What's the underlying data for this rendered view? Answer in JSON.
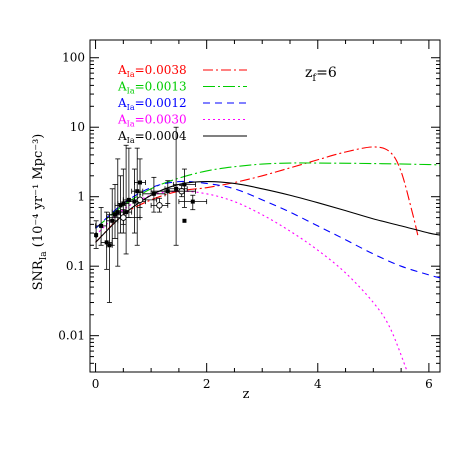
{
  "chart_data": {
    "type": "line",
    "title": "",
    "xlabel": "z",
    "ylabel": {
      "main": "SNR",
      "sub": "Ia",
      "units": " (10⁻⁴ yr⁻¹ Mpc⁻³)"
    },
    "xlim": [
      -0.1,
      6.2
    ],
    "ylim": [
      0.003,
      180
    ],
    "yscale": "log",
    "grid": false,
    "legend_position": "top-right",
    "xticks": [
      0,
      2,
      4,
      6
    ],
    "xtick_labels": [
      "0",
      "2",
      "4",
      "6"
    ],
    "yticks": [
      0.01,
      0.1,
      1,
      10,
      100
    ],
    "ytick_labels": [
      "0.01",
      "0.1",
      "1",
      "10",
      "100"
    ],
    "annotation": {
      "main": "z",
      "sub": "f",
      "tail": "=6"
    },
    "series": [
      {
        "name": {
          "main": "A",
          "sub": "Ia",
          "tail": "=0.0038"
        },
        "color": "#ff0000",
        "dash": "10,3,2,3",
        "x": [
          0,
          0.5,
          1,
          1.5,
          2,
          2.5,
          3,
          3.5,
          4,
          4.5,
          5,
          5.3,
          5.5,
          5.7,
          5.8
        ],
        "y": [
          0.22,
          0.55,
          0.9,
          1.2,
          1.35,
          1.6,
          2.0,
          2.6,
          3.4,
          4.4,
          5.2,
          4.4,
          2.3,
          0.6,
          0.28
        ]
      },
      {
        "name": {
          "main": "A",
          "sub": "Ia",
          "tail": "=0.0013"
        },
        "color": "#00cc00",
        "dash": "12,3,2,3",
        "x": [
          0,
          0.5,
          1,
          1.5,
          2,
          2.5,
          3,
          3.5,
          4,
          5,
          6,
          6.2
        ],
        "y": [
          0.35,
          0.75,
          1.3,
          1.85,
          2.35,
          2.7,
          2.95,
          3.05,
          3.05,
          3.0,
          2.9,
          2.85
        ]
      },
      {
        "name": {
          "main": "A",
          "sub": "Ia",
          "tail": "=0.0012"
        },
        "color": "#0000ff",
        "dash": "7,5",
        "x": [
          0,
          0.5,
          1,
          1.5,
          2,
          2.5,
          3,
          3.5,
          4,
          4.5,
          5,
          5.5,
          6,
          6.2
        ],
        "y": [
          0.35,
          0.8,
          1.35,
          1.65,
          1.55,
          1.3,
          0.9,
          0.6,
          0.38,
          0.24,
          0.15,
          0.1,
          0.075,
          0.068
        ]
      },
      {
        "name": {
          "main": "A",
          "sub": "Ia",
          "tail": "=0.0030"
        },
        "color": "#ff00ff",
        "dash": "2,3",
        "x": [
          0,
          0.5,
          1,
          1.5,
          2,
          2.5,
          3,
          3.5,
          4,
          4.5,
          5,
          5.3,
          5.6
        ],
        "y": [
          0.28,
          0.65,
          1.05,
          1.2,
          1.1,
          0.85,
          0.55,
          0.32,
          0.17,
          0.08,
          0.03,
          0.013,
          0.0032
        ]
      },
      {
        "name": {
          "main": "A",
          "sub": "Ia",
          "tail": "=0.0004"
        },
        "color": "#000000",
        "dash": "",
        "x": [
          0,
          0.5,
          1,
          1.5,
          2,
          2.5,
          3,
          3.5,
          4,
          4.5,
          5,
          5.5,
          6,
          6.2
        ],
        "y": [
          0.22,
          0.55,
          1.05,
          1.5,
          1.65,
          1.55,
          1.3,
          1.05,
          0.82,
          0.63,
          0.48,
          0.38,
          0.3,
          0.28
        ]
      }
    ],
    "observations": [
      {
        "z": 0.01,
        "y": 0.28,
        "xerr": 0.01,
        "ylo": 0.18,
        "yhi": 0.45,
        "marker": "filled"
      },
      {
        "z": 0.1,
        "y": 0.38,
        "xerr": 0.1,
        "ylo": 0.2,
        "yhi": 0.7,
        "marker": "filled"
      },
      {
        "z": 0.2,
        "y": 0.22,
        "xerr": 0.1,
        "ylo": 0.09,
        "yhi": 0.6,
        "marker": "filled"
      },
      {
        "z": 0.25,
        "y": 0.2,
        "xerr": 0.05,
        "ylo": 0.03,
        "yhi": 0.55,
        "marker": "filled"
      },
      {
        "z": 0.3,
        "y": 0.45,
        "xerr": 0.1,
        "ylo": 0.2,
        "yhi": 1.3,
        "marker": "filled"
      },
      {
        "z": 0.35,
        "y": 0.55,
        "xerr": 0.1,
        "ylo": 0.25,
        "yhi": 1.5,
        "marker": "filled"
      },
      {
        "z": 0.4,
        "y": 0.6,
        "xerr": 0.1,
        "ylo": 0.1,
        "yhi": 3.5,
        "marker": "filled"
      },
      {
        "z": 0.45,
        "y": 0.75,
        "xerr": 0.1,
        "ylo": 0.3,
        "yhi": 2.0,
        "marker": "filled"
      },
      {
        "z": 0.5,
        "y": 0.8,
        "xerr": 0.1,
        "ylo": 0.3,
        "yhi": 2.5,
        "marker": "filled"
      },
      {
        "z": 0.55,
        "y": 0.6,
        "xerr": 0.1,
        "ylo": 0.15,
        "yhi": 5.5,
        "marker": "filled"
      },
      {
        "z": 0.6,
        "y": 0.9,
        "xerr": 0.1,
        "ylo": 0.5,
        "yhi": 5.0,
        "marker": "filled"
      },
      {
        "z": 0.7,
        "y": 0.85,
        "xerr": 0.2,
        "ylo": 0.3,
        "yhi": 2.5,
        "marker": "filled"
      },
      {
        "z": 0.75,
        "y": 1.2,
        "xerr": 0.1,
        "ylo": 0.2,
        "yhi": 5.0,
        "marker": "filled"
      },
      {
        "z": 0.8,
        "y": 1.6,
        "xerr": 0.1,
        "ylo": 0.5,
        "yhi": 3.5,
        "marker": "filled"
      },
      {
        "z": 0.5,
        "y": 0.5,
        "xerr": 0.3,
        "ylo": 0.4,
        "yhi": 0.65,
        "marker": "open"
      },
      {
        "z": 0.8,
        "y": 0.9,
        "xerr": 0.3,
        "ylo": 0.7,
        "yhi": 1.15,
        "marker": "open"
      },
      {
        "z": 1.15,
        "y": 0.75,
        "xerr": 0.15,
        "ylo": 0.6,
        "yhi": 0.95,
        "marker": "open"
      },
      {
        "z": 1.55,
        "y": 1.2,
        "xerr": 0.25,
        "ylo": 1.0,
        "yhi": 1.45,
        "marker": "open"
      },
      {
        "z": 1.05,
        "y": 1.1,
        "xerr": 0.2,
        "ylo": 0.6,
        "yhi": 1.9,
        "marker": "filled"
      },
      {
        "z": 1.3,
        "y": 1.2,
        "xerr": 0.3,
        "ylo": 0.8,
        "yhi": 1.7,
        "marker": "filled"
      },
      {
        "z": 1.45,
        "y": 1.3,
        "xerr": 0.2,
        "ylo": 0.2,
        "yhi": 10.0,
        "marker": "filled"
      },
      {
        "z": 1.6,
        "y": 1.5,
        "xerr": 0.2,
        "ylo": 0.7,
        "yhi": 2.5,
        "marker": "filled"
      },
      {
        "z": 1.6,
        "y": 0.45,
        "xerr": 0.0,
        "ylo": 0.45,
        "yhi": 0.45,
        "marker": "filled"
      },
      {
        "z": 1.75,
        "y": 0.85,
        "xerr": 0.25,
        "ylo": 0.65,
        "yhi": 1.05,
        "marker": "filled"
      }
    ]
  }
}
